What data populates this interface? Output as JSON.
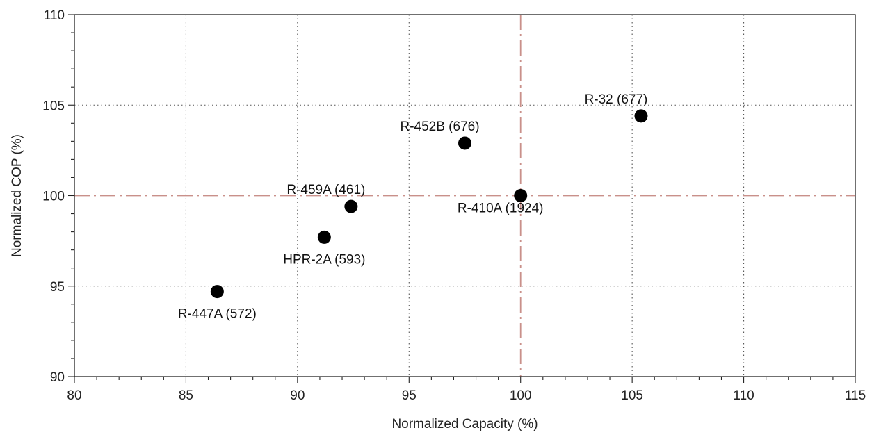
{
  "chart_data": {
    "type": "scatter",
    "title": "",
    "xlabel": "Normalized Capacity (%)",
    "ylabel": "Normalized COP (%)",
    "xlim": [
      80,
      115
    ],
    "ylim": [
      90,
      110
    ],
    "x_major_ticks": [
      80,
      85,
      90,
      95,
      100,
      105,
      110,
      115
    ],
    "y_major_ticks": [
      90,
      95,
      100,
      105,
      110
    ],
    "x_tick_labels": [
      "80",
      "85",
      "90",
      "95",
      "100",
      "105",
      "110",
      "115"
    ],
    "y_tick_labels": [
      "90",
      "95",
      "100",
      "105",
      "110"
    ],
    "grid": true,
    "grid_style": "dotted",
    "reference_lines": [
      {
        "orientation": "vertical",
        "value": 100,
        "style": "dash-dot",
        "color": "#c9908a"
      },
      {
        "orientation": "horizontal",
        "value": 100,
        "style": "dash-dot",
        "color": "#c9908a"
      }
    ],
    "marker_color": "#000000",
    "points": [
      {
        "label": "R-410A (1924)",
        "x": 100.0,
        "y": 100.0,
        "label_position": "below-left"
      },
      {
        "label": "R-32 (677)",
        "x": 105.4,
        "y": 104.4,
        "label_position": "above-left"
      },
      {
        "label": "R-452B (676)",
        "x": 97.5,
        "y": 102.9,
        "label_position": "above-left"
      },
      {
        "label": "R-459A (461)",
        "x": 92.4,
        "y": 99.4,
        "label_position": "above-left"
      },
      {
        "label": "HPR-2A (593)",
        "x": 91.2,
        "y": 97.7,
        "label_position": "below"
      },
      {
        "label": "R-447A (572)",
        "x": 86.4,
        "y": 94.7,
        "label_position": "below"
      }
    ]
  }
}
